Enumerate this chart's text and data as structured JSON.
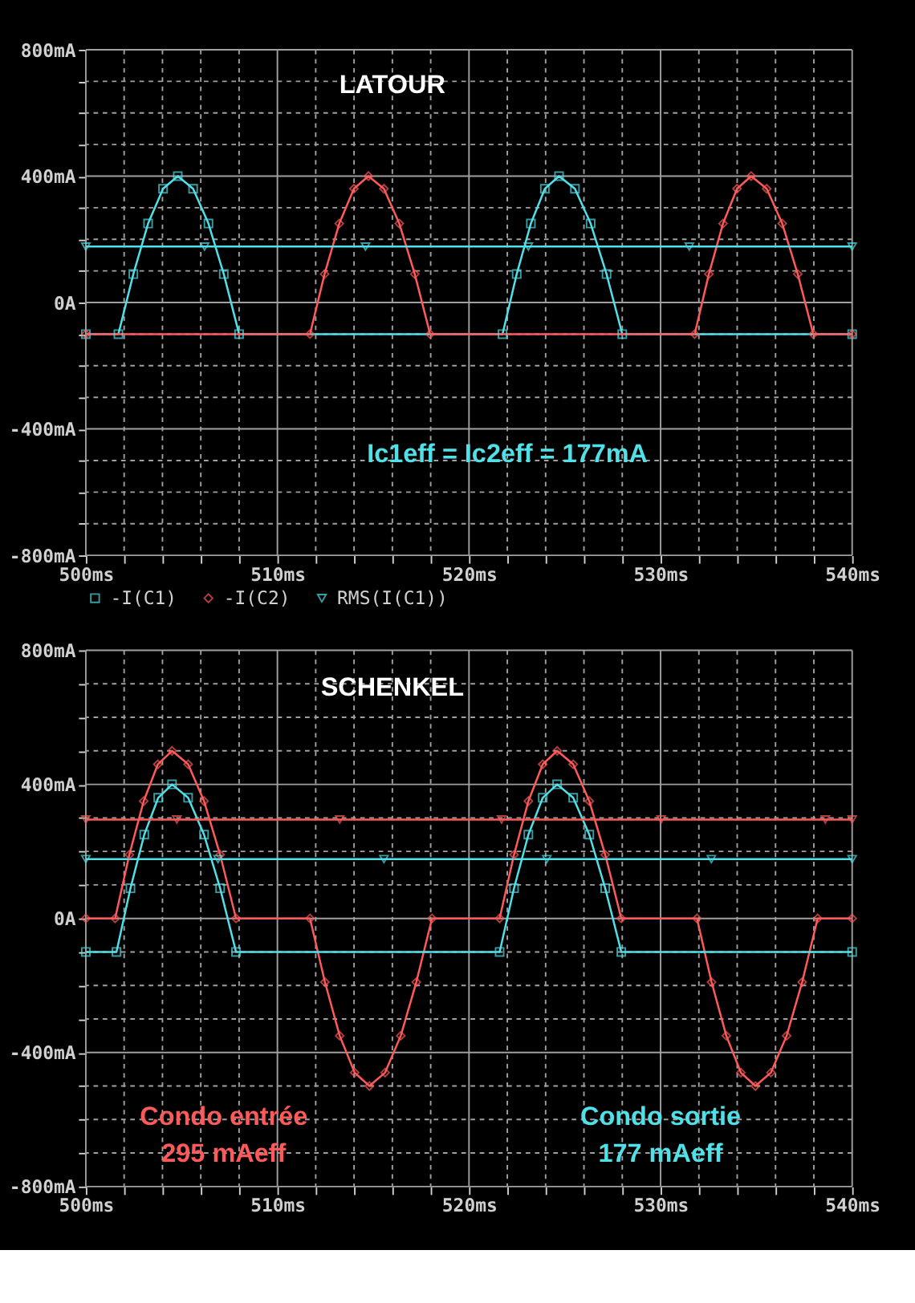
{
  "chart_data": [
    {
      "type": "line",
      "title": "LATOUR",
      "annotations": [
        "Ic1eff = Ic2eff = 177mA"
      ],
      "legend": "bottom",
      "grid": true,
      "xlim": [
        500,
        540
      ],
      "ylim": [
        -800,
        800
      ],
      "xticks": [
        {
          "value": 500,
          "label": "500ms"
        },
        {
          "value": 502,
          "label": null
        },
        {
          "value": 504,
          "label": null
        },
        {
          "value": 506,
          "label": null
        },
        {
          "value": 508,
          "label": null
        },
        {
          "value": 510,
          "label": "510ms"
        },
        {
          "value": 512,
          "label": null
        },
        {
          "value": 514,
          "label": null
        },
        {
          "value": 516,
          "label": null
        },
        {
          "value": 518,
          "label": null
        },
        {
          "value": 520,
          "label": "520ms"
        },
        {
          "value": 522,
          "label": null
        },
        {
          "value": 524,
          "label": null
        },
        {
          "value": 526,
          "label": null
        },
        {
          "value": 528,
          "label": null
        },
        {
          "value": 530,
          "label": "530ms"
        },
        {
          "value": 532,
          "label": null
        },
        {
          "value": 534,
          "label": null
        },
        {
          "value": 536,
          "label": null
        },
        {
          "value": 538,
          "label": null
        },
        {
          "value": 540,
          "label": "540ms"
        }
      ],
      "yticks": [
        {
          "value": -800,
          "label": "-800mA"
        },
        {
          "value": -700,
          "label": null
        },
        {
          "value": -600,
          "label": null
        },
        {
          "value": -500,
          "label": null
        },
        {
          "value": -400,
          "label": "-400mA"
        },
        {
          "value": -300,
          "label": null
        },
        {
          "value": -200,
          "label": null
        },
        {
          "value": -100,
          "label": null
        },
        {
          "value": 0,
          "label": "0A"
        },
        {
          "value": 100,
          "label": null
        },
        {
          "value": 200,
          "label": null
        },
        {
          "value": 300,
          "label": null
        },
        {
          "value": 400,
          "label": "400mA"
        },
        {
          "value": 500,
          "label": null
        },
        {
          "value": 600,
          "label": null
        },
        {
          "value": 700,
          "label": null
        },
        {
          "value": 800,
          "label": "800mA"
        }
      ],
      "series": [
        {
          "name": "-I(C1)",
          "color": "#50e0e8",
          "marker": "square",
          "x": [
            500,
            501.7,
            502.48,
            503.25,
            504.03,
            504.8,
            505.6,
            506.4,
            507.2,
            508.0,
            521.75,
            522.49,
            523.23,
            523.96,
            524.7,
            525.53,
            526.35,
            527.18,
            528.0,
            540
          ],
          "values": [
            -100,
            -100,
            90,
            250,
            360,
            400,
            360,
            250,
            90,
            -100,
            -100,
            90,
            250,
            360,
            400,
            360,
            250,
            90,
            -100,
            -100
          ]
        },
        {
          "name": "-I(C2)",
          "color": "#ff5a5a",
          "marker": "diamond",
          "x": [
            500,
            511.7,
            512.46,
            513.23,
            513.99,
            514.75,
            515.56,
            516.36,
            517.17,
            517.97,
            531.78,
            532.52,
            533.26,
            533.99,
            534.73,
            535.54,
            536.35,
            537.16,
            537.97,
            540
          ],
          "values": [
            -100,
            -100,
            90,
            250,
            360,
            400,
            360,
            250,
            90,
            -100,
            -100,
            90,
            250,
            360,
            400,
            360,
            250,
            90,
            -100,
            -100
          ]
        },
        {
          "name": "RMS(I(C1))",
          "color": "#50e0e8",
          "marker": "triangle",
          "x": [
            500,
            506.2,
            514.6,
            523.1,
            531.5,
            540
          ],
          "values": [
            177,
            177,
            177,
            177,
            177,
            177
          ]
        }
      ]
    },
    {
      "type": "line",
      "title": "SCHENKEL",
      "annotations": [
        "Condo entrée",
        "295 mAeff",
        "Condo sortie",
        "177 mAeff"
      ],
      "grid": true,
      "xlim": [
        500,
        540
      ],
      "ylim": [
        -800,
        800
      ],
      "xticks": [
        {
          "value": 500,
          "label": "500ms"
        },
        {
          "value": 502,
          "label": null
        },
        {
          "value": 504,
          "label": null
        },
        {
          "value": 506,
          "label": null
        },
        {
          "value": 508,
          "label": null
        },
        {
          "value": 510,
          "label": "510ms"
        },
        {
          "value": 512,
          "label": null
        },
        {
          "value": 514,
          "label": null
        },
        {
          "value": 516,
          "label": null
        },
        {
          "value": 518,
          "label": null
        },
        {
          "value": 520,
          "label": "520ms"
        },
        {
          "value": 522,
          "label": null
        },
        {
          "value": 524,
          "label": null
        },
        {
          "value": 526,
          "label": null
        },
        {
          "value": 528,
          "label": null
        },
        {
          "value": 530,
          "label": "530ms"
        },
        {
          "value": 532,
          "label": null
        },
        {
          "value": 534,
          "label": null
        },
        {
          "value": 536,
          "label": null
        },
        {
          "value": 538,
          "label": null
        },
        {
          "value": 540,
          "label": "540ms"
        }
      ],
      "yticks": [
        {
          "value": -800,
          "label": "-800mA"
        },
        {
          "value": -700,
          "label": null
        },
        {
          "value": -600,
          "label": null
        },
        {
          "value": -500,
          "label": null
        },
        {
          "value": -400,
          "label": "-400mA"
        },
        {
          "value": -300,
          "label": null
        },
        {
          "value": -200,
          "label": null
        },
        {
          "value": -100,
          "label": null
        },
        {
          "value": 0,
          "label": "0A"
        },
        {
          "value": 100,
          "label": null
        },
        {
          "value": 200,
          "label": null
        },
        {
          "value": 300,
          "label": null
        },
        {
          "value": 400,
          "label": "400mA"
        },
        {
          "value": 500,
          "label": null
        },
        {
          "value": 600,
          "label": null
        },
        {
          "value": 700,
          "label": null
        },
        {
          "value": 800,
          "label": "800mA"
        }
      ],
      "series": [
        {
          "color": "#ff5a5a",
          "marker": "diamond",
          "x": [
            500,
            501.53,
            502.27,
            503.02,
            503.76,
            504.5,
            505.34,
            506.17,
            507.01,
            507.84,
            511.7,
            512.48,
            513.25,
            514.03,
            514.8,
            515.62,
            516.44,
            517.25,
            518.07,
            521.6,
            522.35,
            523.1,
            523.85,
            524.6,
            525.44,
            526.28,
            527.11,
            527.95,
            531.9,
            532.66,
            533.43,
            534.19,
            534.95,
            535.76,
            536.58,
            537.39,
            538.2,
            540
          ],
          "values": [
            0,
            0,
            190,
            350,
            460,
            500,
            460,
            350,
            190,
            0,
            0,
            -190,
            -350,
            -460,
            -500,
            -460,
            -350,
            -190,
            0,
            0,
            190,
            350,
            460,
            500,
            460,
            350,
            190,
            0,
            0,
            -190,
            -350,
            -460,
            -500,
            -460,
            -350,
            -190,
            0,
            0
          ]
        },
        {
          "color": "#50e0e8",
          "marker": "square",
          "x": [
            500,
            501.6,
            502.33,
            503.05,
            503.78,
            504.5,
            505.34,
            506.17,
            507.01,
            507.84,
            521.6,
            522.35,
            523.1,
            523.85,
            524.6,
            525.44,
            526.28,
            527.11,
            527.95,
            540
          ],
          "values": [
            -100,
            -100,
            90,
            250,
            360,
            400,
            360,
            250,
            90,
            -100,
            -100,
            90,
            250,
            360,
            400,
            360,
            250,
            90,
            -100,
            -100
          ]
        },
        {
          "color": "#ff5a5a",
          "marker": "triangle",
          "x": [
            500,
            504.75,
            513.25,
            521.7,
            530.03,
            538.6,
            540
          ],
          "values": [
            295,
            295,
            295,
            295,
            295,
            295,
            295
          ]
        },
        {
          "color": "#50e0e8",
          "marker": "triangle",
          "x": [
            500,
            506.9,
            515.56,
            524.06,
            532.65,
            540
          ],
          "values": [
            177,
            177,
            177,
            177,
            177,
            177
          ]
        }
      ]
    }
  ]
}
